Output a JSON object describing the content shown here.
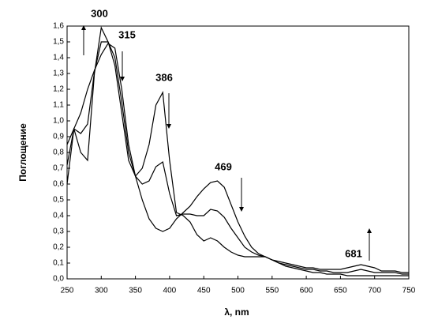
{
  "chart_data": {
    "type": "line",
    "xlabel": "λ, nm",
    "ylabel": "Поглощение",
    "annotations": [
      "300",
      "315",
      "386",
      "469",
      "681"
    ],
    "x": [
      250,
      260,
      270,
      280,
      290,
      300,
      310,
      320,
      330,
      340,
      350,
      360,
      370,
      380,
      390,
      400,
      410,
      420,
      430,
      440,
      450,
      460,
      470,
      480,
      490,
      500,
      510,
      520,
      530,
      540,
      550,
      560,
      570,
      580,
      590,
      600,
      610,
      620,
      630,
      640,
      650,
      660,
      670,
      680,
      690,
      700,
      710,
      720,
      730,
      740,
      750
    ],
    "series": [
      {
        "color": "#000000",
        "values": [
          0.6,
          0.95,
          1.05,
          1.2,
          1.32,
          1.42,
          1.49,
          1.46,
          1.2,
          0.85,
          0.65,
          0.5,
          0.38,
          0.32,
          0.3,
          0.32,
          0.38,
          0.42,
          0.46,
          0.52,
          0.57,
          0.61,
          0.62,
          0.58,
          0.47,
          0.36,
          0.27,
          0.2,
          0.16,
          0.14,
          0.12,
          0.1,
          0.08,
          0.07,
          0.06,
          0.05,
          0.04,
          0.04,
          0.03,
          0.03,
          0.03,
          0.02,
          0.02,
          0.02,
          0.02,
          0.02,
          0.02,
          0.02,
          0.02,
          0.02,
          0.02
        ]
      },
      {
        "color": "#000000",
        "values": [
          0.72,
          0.95,
          0.92,
          0.98,
          1.31,
          1.5,
          1.5,
          1.4,
          1.12,
          0.8,
          0.65,
          0.6,
          0.62,
          0.71,
          0.74,
          0.54,
          0.4,
          0.41,
          0.41,
          0.4,
          0.4,
          0.44,
          0.43,
          0.39,
          0.32,
          0.26,
          0.2,
          0.17,
          0.15,
          0.14,
          0.12,
          0.1,
          0.09,
          0.08,
          0.07,
          0.06,
          0.06,
          0.05,
          0.05,
          0.04,
          0.04,
          0.04,
          0.05,
          0.06,
          0.05,
          0.04,
          0.04,
          0.04,
          0.04,
          0.03,
          0.03
        ]
      },
      {
        "color": "#000000",
        "values": [
          0.85,
          0.95,
          0.8,
          0.75,
          1.3,
          1.59,
          1.5,
          1.35,
          1.05,
          0.75,
          0.65,
          0.7,
          0.85,
          1.1,
          1.18,
          0.75,
          0.42,
          0.4,
          0.36,
          0.28,
          0.24,
          0.26,
          0.24,
          0.2,
          0.17,
          0.15,
          0.14,
          0.14,
          0.14,
          0.14,
          0.12,
          0.11,
          0.1,
          0.09,
          0.08,
          0.07,
          0.07,
          0.06,
          0.06,
          0.06,
          0.06,
          0.07,
          0.08,
          0.09,
          0.08,
          0.07,
          0.05,
          0.05,
          0.05,
          0.04,
          0.04
        ]
      }
    ],
    "xlim": [
      250,
      750
    ],
    "xticks": [
      250,
      300,
      350,
      400,
      450,
      500,
      550,
      600,
      650,
      700,
      750
    ],
    "ylim": [
      0,
      1.6
    ],
    "yticks": [
      {
        "value": 0,
        "label": "0,0"
      },
      {
        "value": 0.1,
        "label": "0,1"
      },
      {
        "value": 0.2,
        "label": "0,2"
      },
      {
        "value": 0.3,
        "label": "0,3"
      },
      {
        "value": 0.4,
        "label": "0,4"
      },
      {
        "value": 0.5,
        "label": "0,5"
      },
      {
        "value": 0.6,
        "label": "0,6"
      },
      {
        "value": 0.7,
        "label": "0,7"
      },
      {
        "value": 0.8,
        "label": "0,8"
      },
      {
        "value": 0.9,
        "label": "0,9"
      },
      {
        "value": 1.0,
        "label": "1,0"
      },
      {
        "value": 1.1,
        "label": "1,1"
      },
      {
        "value": 1.2,
        "label": "1,2"
      },
      {
        "value": 1.3,
        "label": "1,3"
      },
      {
        "value": 1.4,
        "label": "1,4"
      },
      {
        "value": 1.5,
        "label": "1,5"
      },
      {
        "value": 1.6,
        "label": "1,6"
      }
    ],
    "grid": false
  }
}
